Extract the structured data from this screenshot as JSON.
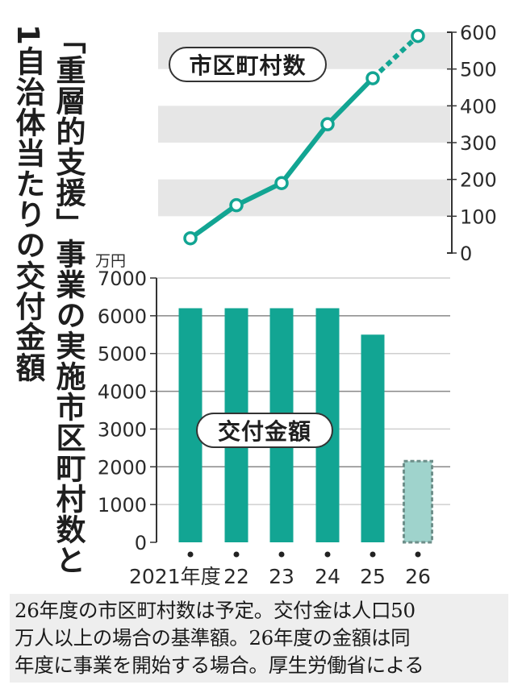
{
  "title": {
    "line1": "「重層的支援」事業の実施市区町村数と",
    "line2": "1自治体当たりの交付金額"
  },
  "labels": {
    "line_series": "市区町村数",
    "bar_series": "交付金額",
    "bar_unit": "万円"
  },
  "colors": {
    "teal": "#12a593",
    "teal_light": "#9fd3cc",
    "band": "#e6e6e6",
    "axis": "#333333"
  },
  "footnote": {
    "lines": [
      "26年度の市区町村数は予定。交付金は人口50",
      "万人以上の場合の基準額。26年度の金額は同",
      "年度に事業を開始する場合。厚生労働省による"
    ]
  },
  "chart_data": [
    {
      "type": "line",
      "title": "市区町村数",
      "categories": [
        "2021年度",
        "22",
        "23",
        "24",
        "25",
        "26"
      ],
      "values": [
        40,
        130,
        190,
        350,
        475,
        590
      ],
      "projected_from_index": 4,
      "ylabel": "",
      "ylim": [
        0,
        600
      ],
      "yticks": [
        "0",
        "100",
        "200",
        "300",
        "400",
        "500",
        "600"
      ],
      "y_axis_position": "right",
      "background_bands": [
        [
          100,
          200
        ],
        [
          300,
          400
        ],
        [
          500,
          600
        ]
      ]
    },
    {
      "type": "bar",
      "title": "交付金額",
      "categories": [
        "2021年度",
        "22",
        "23",
        "24",
        "25",
        "26"
      ],
      "values": [
        6200,
        6200,
        6200,
        6200,
        5500,
        2150
      ],
      "projected_index": 5,
      "ylabel": "万円",
      "ylim": [
        0,
        7000
      ],
      "yticks": [
        "0",
        "1000",
        "2000",
        "3000",
        "4000",
        "5000",
        "6000",
        "7000"
      ],
      "grid": true
    }
  ]
}
